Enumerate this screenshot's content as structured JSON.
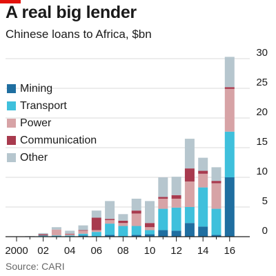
{
  "title": "A real big lender",
  "subtitle": "Chinese loans to Africa, $bn",
  "source": "Source: CARI",
  "colors": {
    "accent": "#e3120b",
    "Mining": "#1f6ea0",
    "Transport": "#3fc0dc",
    "Power": "#d7a3a6",
    "Communication": "#a83a4e",
    "Other": "#b6c6ce"
  },
  "chart_data": {
    "type": "bar",
    "stacked": true,
    "title": "A real big lender",
    "subtitle": "Chinese loans to Africa, $bn",
    "x": [
      2000,
      2001,
      2002,
      2003,
      2004,
      2005,
      2006,
      2007,
      2008,
      2009,
      2010,
      2011,
      2012,
      2013,
      2014,
      2015,
      2016
    ],
    "x_tick_labels": [
      "2000",
      "02",
      "04",
      "06",
      "08",
      "10",
      "12",
      "14",
      "16"
    ],
    "x_tick_values": [
      2000,
      2002,
      2004,
      2006,
      2008,
      2010,
      2012,
      2014,
      2016
    ],
    "y_ticks": [
      0,
      5,
      10,
      15,
      20,
      25,
      30
    ],
    "ylim": [
      0,
      30
    ],
    "y_axis_side": "right",
    "grid": true,
    "legend_placement": "left",
    "series": [
      {
        "name": "Mining",
        "values": [
          0,
          0,
          0,
          0,
          0,
          0.2,
          0,
          0.3,
          0.1,
          0.3,
          0.4,
          1.1,
          1.0,
          2.3,
          1.7,
          0.3,
          10.0
        ]
      },
      {
        "name": "Transport",
        "values": [
          0,
          0,
          0.2,
          0.2,
          0.2,
          0.3,
          0.8,
          1.9,
          1.7,
          1.5,
          0.7,
          3.6,
          3.9,
          2.7,
          6.6,
          4.4,
          7.7
        ]
      },
      {
        "name": "Power",
        "values": [
          0,
          0,
          0,
          1.0,
          0.2,
          0.5,
          0.3,
          0.6,
          0.5,
          2.1,
          0.5,
          1.7,
          1.5,
          4.3,
          2.3,
          4.3,
          7.2
        ]
      },
      {
        "name": "Communication",
        "values": [
          0,
          0,
          0.2,
          0,
          0.1,
          0.1,
          2.1,
          0.2,
          0.4,
          0.5,
          0.7,
          0.3,
          0.6,
          2.2,
          0.5,
          0.4,
          0.3
        ]
      },
      {
        "name": "Other",
        "values": [
          0,
          0.1,
          0.2,
          0.4,
          0.5,
          0.8,
          1.2,
          3.0,
          1.1,
          2.0,
          3.7,
          3.3,
          3.1,
          5.0,
          2.2,
          2.3,
          5.1
        ]
      }
    ]
  }
}
